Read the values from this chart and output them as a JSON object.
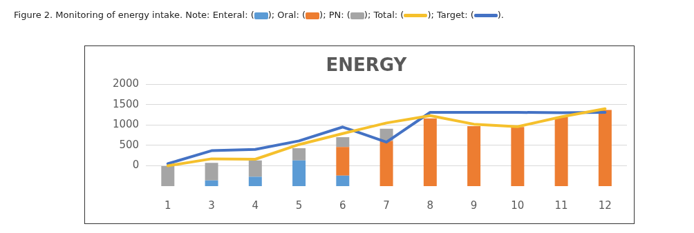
{
  "chart_data": {
    "type": "bar",
    "title": "ENERGY",
    "annotations": [
      "Figure 2. Monitoring of energy intake. Note:",
      ": (",
      ");",
      ")."
    ],
    "categories": [
      "1",
      "3",
      "4",
      "5",
      "6",
      "7",
      "8",
      "9",
      "10",
      "11",
      "12"
    ],
    "series": [
      {
        "name": "Enteral",
        "color": "#5b9bd5",
        "base": [
          null,
          -500,
          -500,
          -500,
          -500,
          null,
          null,
          null,
          null,
          null,
          null
        ],
        "values": [
          null,
          140,
          230,
          630,
          260,
          null,
          null,
          null,
          null,
          null,
          null
        ]
      },
      {
        "name": "Oral",
        "color": "#ed7d31",
        "base": [
          null,
          null,
          null,
          null,
          -240,
          -500,
          -500,
          -500,
          -500,
          -500,
          -500
        ],
        "values": [
          null,
          null,
          null,
          null,
          700,
          1110,
          1660,
          1470,
          1450,
          1690,
          1870
        ]
      },
      {
        "name": "PN",
        "color": "#a5a5a5",
        "base": [
          -500,
          -360,
          -270,
          130,
          460,
          610,
          null,
          null,
          null,
          null,
          null
        ],
        "values": [
          500,
          430,
          400,
          300,
          240,
          300,
          null,
          null,
          null,
          null,
          null
        ]
      },
      {
        "name": "Total",
        "type": "line",
        "color": "#f5c02c",
        "values": [
          0,
          170,
          160,
          520,
          790,
          1050,
          1230,
          1020,
          960,
          1200,
          1400
        ]
      },
      {
        "name": "Target",
        "type": "line",
        "color": "#4472c4",
        "values": [
          50,
          370,
          400,
          610,
          950,
          580,
          1310,
          1310,
          1310,
          1300,
          1310
        ]
      }
    ],
    "ylim": [
      -500,
      2000
    ],
    "yticks": [
      0,
      500,
      1000,
      1500,
      2000
    ],
    "grid": "y",
    "legend": "top"
  }
}
